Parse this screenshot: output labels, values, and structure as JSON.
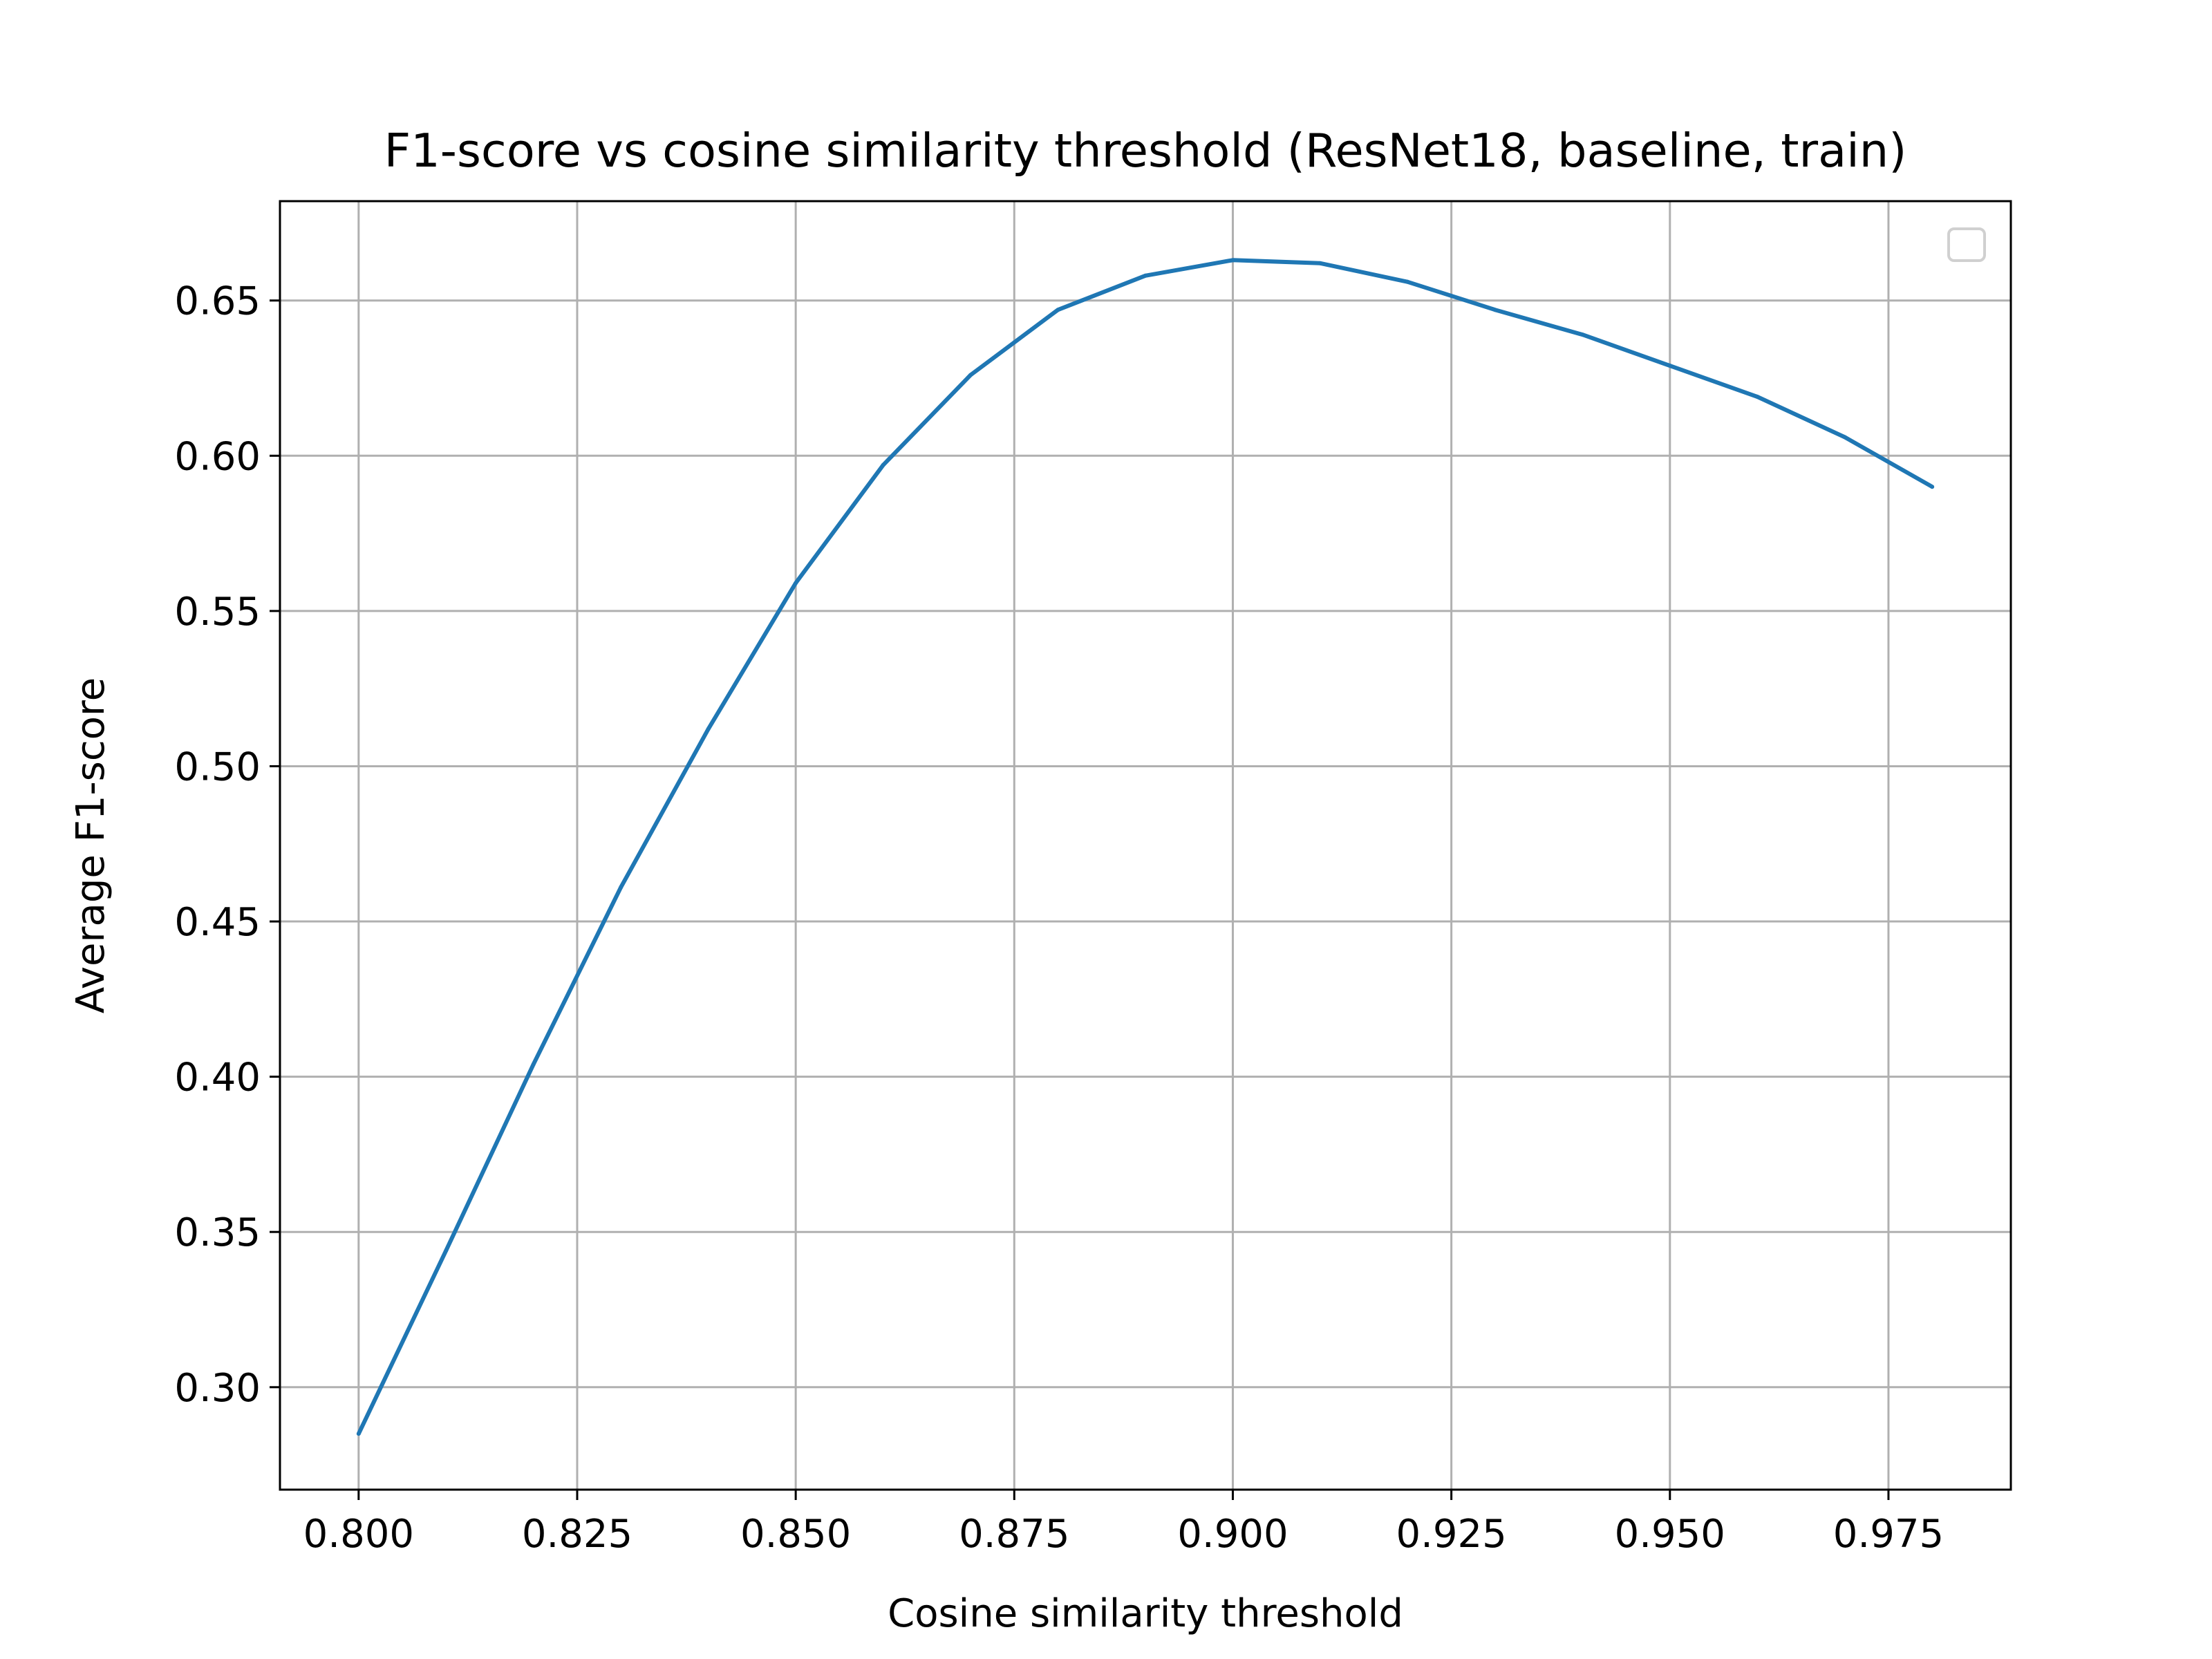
{
  "chart_data": {
    "type": "line",
    "title": "F1-score vs cosine similarity threshold (ResNet18, baseline, train)",
    "xlabel": "Cosine similarity threshold",
    "ylabel": "Average F1-score",
    "xlim": [
      0.791,
      0.989
    ],
    "ylim": [
      0.267,
      0.682
    ],
    "xticks": [
      0.8,
      0.825,
      0.85,
      0.875,
      0.9,
      0.925,
      0.95,
      0.975
    ],
    "xtick_labels": [
      "0.800",
      "0.825",
      "0.850",
      "0.875",
      "0.900",
      "0.925",
      "0.950",
      "0.975"
    ],
    "yticks": [
      0.3,
      0.35,
      0.4,
      0.45,
      0.5,
      0.55,
      0.6,
      0.65
    ],
    "ytick_labels": [
      "0.30",
      "0.35",
      "0.40",
      "0.45",
      "0.50",
      "0.55",
      "0.60",
      "0.65"
    ],
    "grid": true,
    "legend": "upper right (empty)",
    "series": [
      {
        "color": "#1f77b4",
        "x": [
          0.8,
          0.81,
          0.82,
          0.83,
          0.84,
          0.85,
          0.86,
          0.87,
          0.88,
          0.89,
          0.9,
          0.91,
          0.92,
          0.93,
          0.94,
          0.95,
          0.96,
          0.97,
          0.98
        ],
        "y": [
          0.285,
          0.344,
          0.404,
          0.461,
          0.512,
          0.559,
          0.597,
          0.626,
          0.647,
          0.658,
          0.663,
          0.662,
          0.656,
          0.647,
          0.639,
          0.629,
          0.619,
          0.606,
          0.59
        ]
      }
    ]
  }
}
